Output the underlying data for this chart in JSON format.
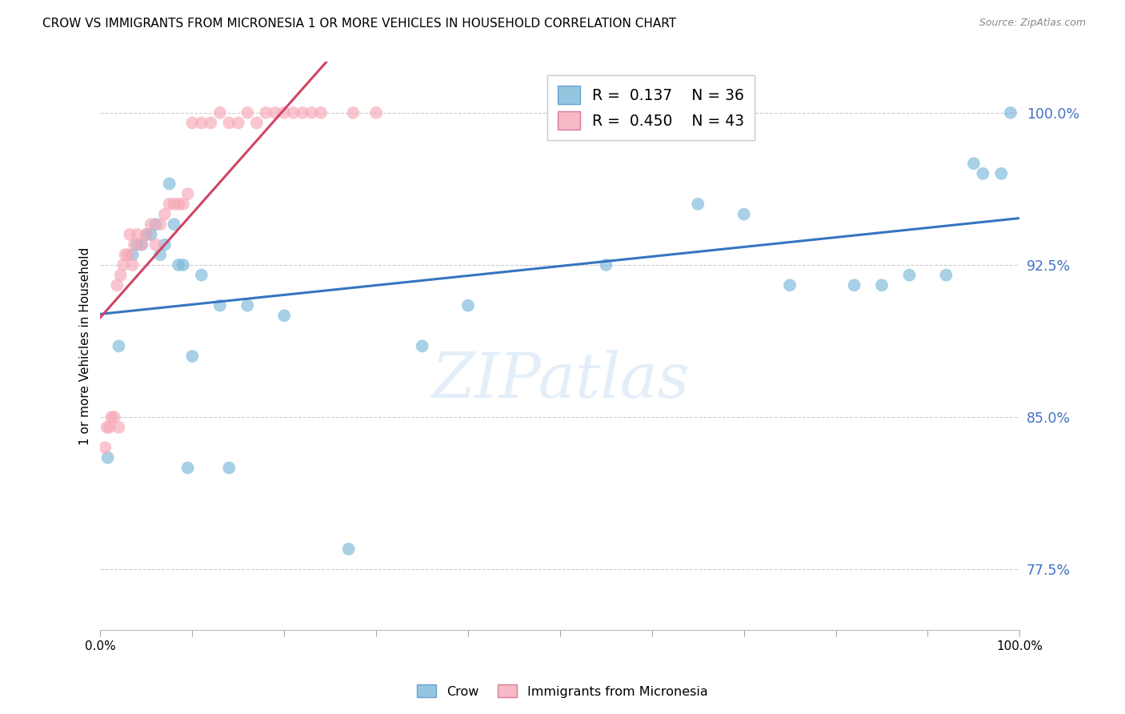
{
  "title": "CROW VS IMMIGRANTS FROM MICRONESIA 1 OR MORE VEHICLES IN HOUSEHOLD CORRELATION CHART",
  "source": "Source: ZipAtlas.com",
  "ylabel": "1 or more Vehicles in Household",
  "legend_bottom_left": "Crow",
  "legend_bottom_right": "Immigrants from Micronesia",
  "yticks": [
    77.5,
    85.0,
    92.5,
    100.0
  ],
  "xlim": [
    0.0,
    100.0
  ],
  "ylim": [
    74.5,
    102.5
  ],
  "crow_R": 0.137,
  "crow_N": 36,
  "micro_R": 0.45,
  "micro_N": 43,
  "crow_color": "#7ab8d9",
  "micro_color": "#f7a8b8",
  "crow_line_color": "#3575c0",
  "micro_line_color": "#d04565",
  "crow_x": [
    0.8,
    2.0,
    3.5,
    4.0,
    4.5,
    5.0,
    5.5,
    6.0,
    6.5,
    7.0,
    7.5,
    8.0,
    8.5,
    9.0,
    9.5,
    10.0,
    11.0,
    13.0,
    14.0,
    16.0,
    20.0,
    27.0,
    35.0,
    40.0,
    55.0,
    65.0,
    70.0,
    75.0,
    82.0,
    85.0,
    88.0,
    92.0,
    95.0,
    96.0,
    98.0,
    99.0
  ],
  "crow_y": [
    83.0,
    88.5,
    93.0,
    93.5,
    93.5,
    94.0,
    94.0,
    94.5,
    93.0,
    93.5,
    96.5,
    94.5,
    92.5,
    92.5,
    82.5,
    88.0,
    92.0,
    90.5,
    82.5,
    90.5,
    90.0,
    78.5,
    88.5,
    90.5,
    92.5,
    95.5,
    95.0,
    91.5,
    91.5,
    91.5,
    92.0,
    92.0,
    97.5,
    97.0,
    97.0,
    100.0
  ],
  "micro_x": [
    0.5,
    0.7,
    1.0,
    1.2,
    1.5,
    1.8,
    2.0,
    2.2,
    2.5,
    2.7,
    3.0,
    3.2,
    3.5,
    3.7,
    4.0,
    4.5,
    5.0,
    5.5,
    6.0,
    6.5,
    7.0,
    7.5,
    8.0,
    8.5,
    9.0,
    9.5,
    10.0,
    11.0,
    12.0,
    13.0,
    14.0,
    15.0,
    16.0,
    17.0,
    18.0,
    19.0,
    20.0,
    21.0,
    22.0,
    23.0,
    24.0,
    27.5,
    30.0
  ],
  "micro_y": [
    83.5,
    84.5,
    84.5,
    85.0,
    85.0,
    91.5,
    84.5,
    92.0,
    92.5,
    93.0,
    93.0,
    94.0,
    92.5,
    93.5,
    94.0,
    93.5,
    94.0,
    94.5,
    93.5,
    94.5,
    95.0,
    95.5,
    95.5,
    95.5,
    95.5,
    96.0,
    99.5,
    99.5,
    99.5,
    100.0,
    99.5,
    99.5,
    100.0,
    99.5,
    100.0,
    100.0,
    100.0,
    100.0,
    100.0,
    100.0,
    100.0,
    100.0,
    100.0
  ]
}
